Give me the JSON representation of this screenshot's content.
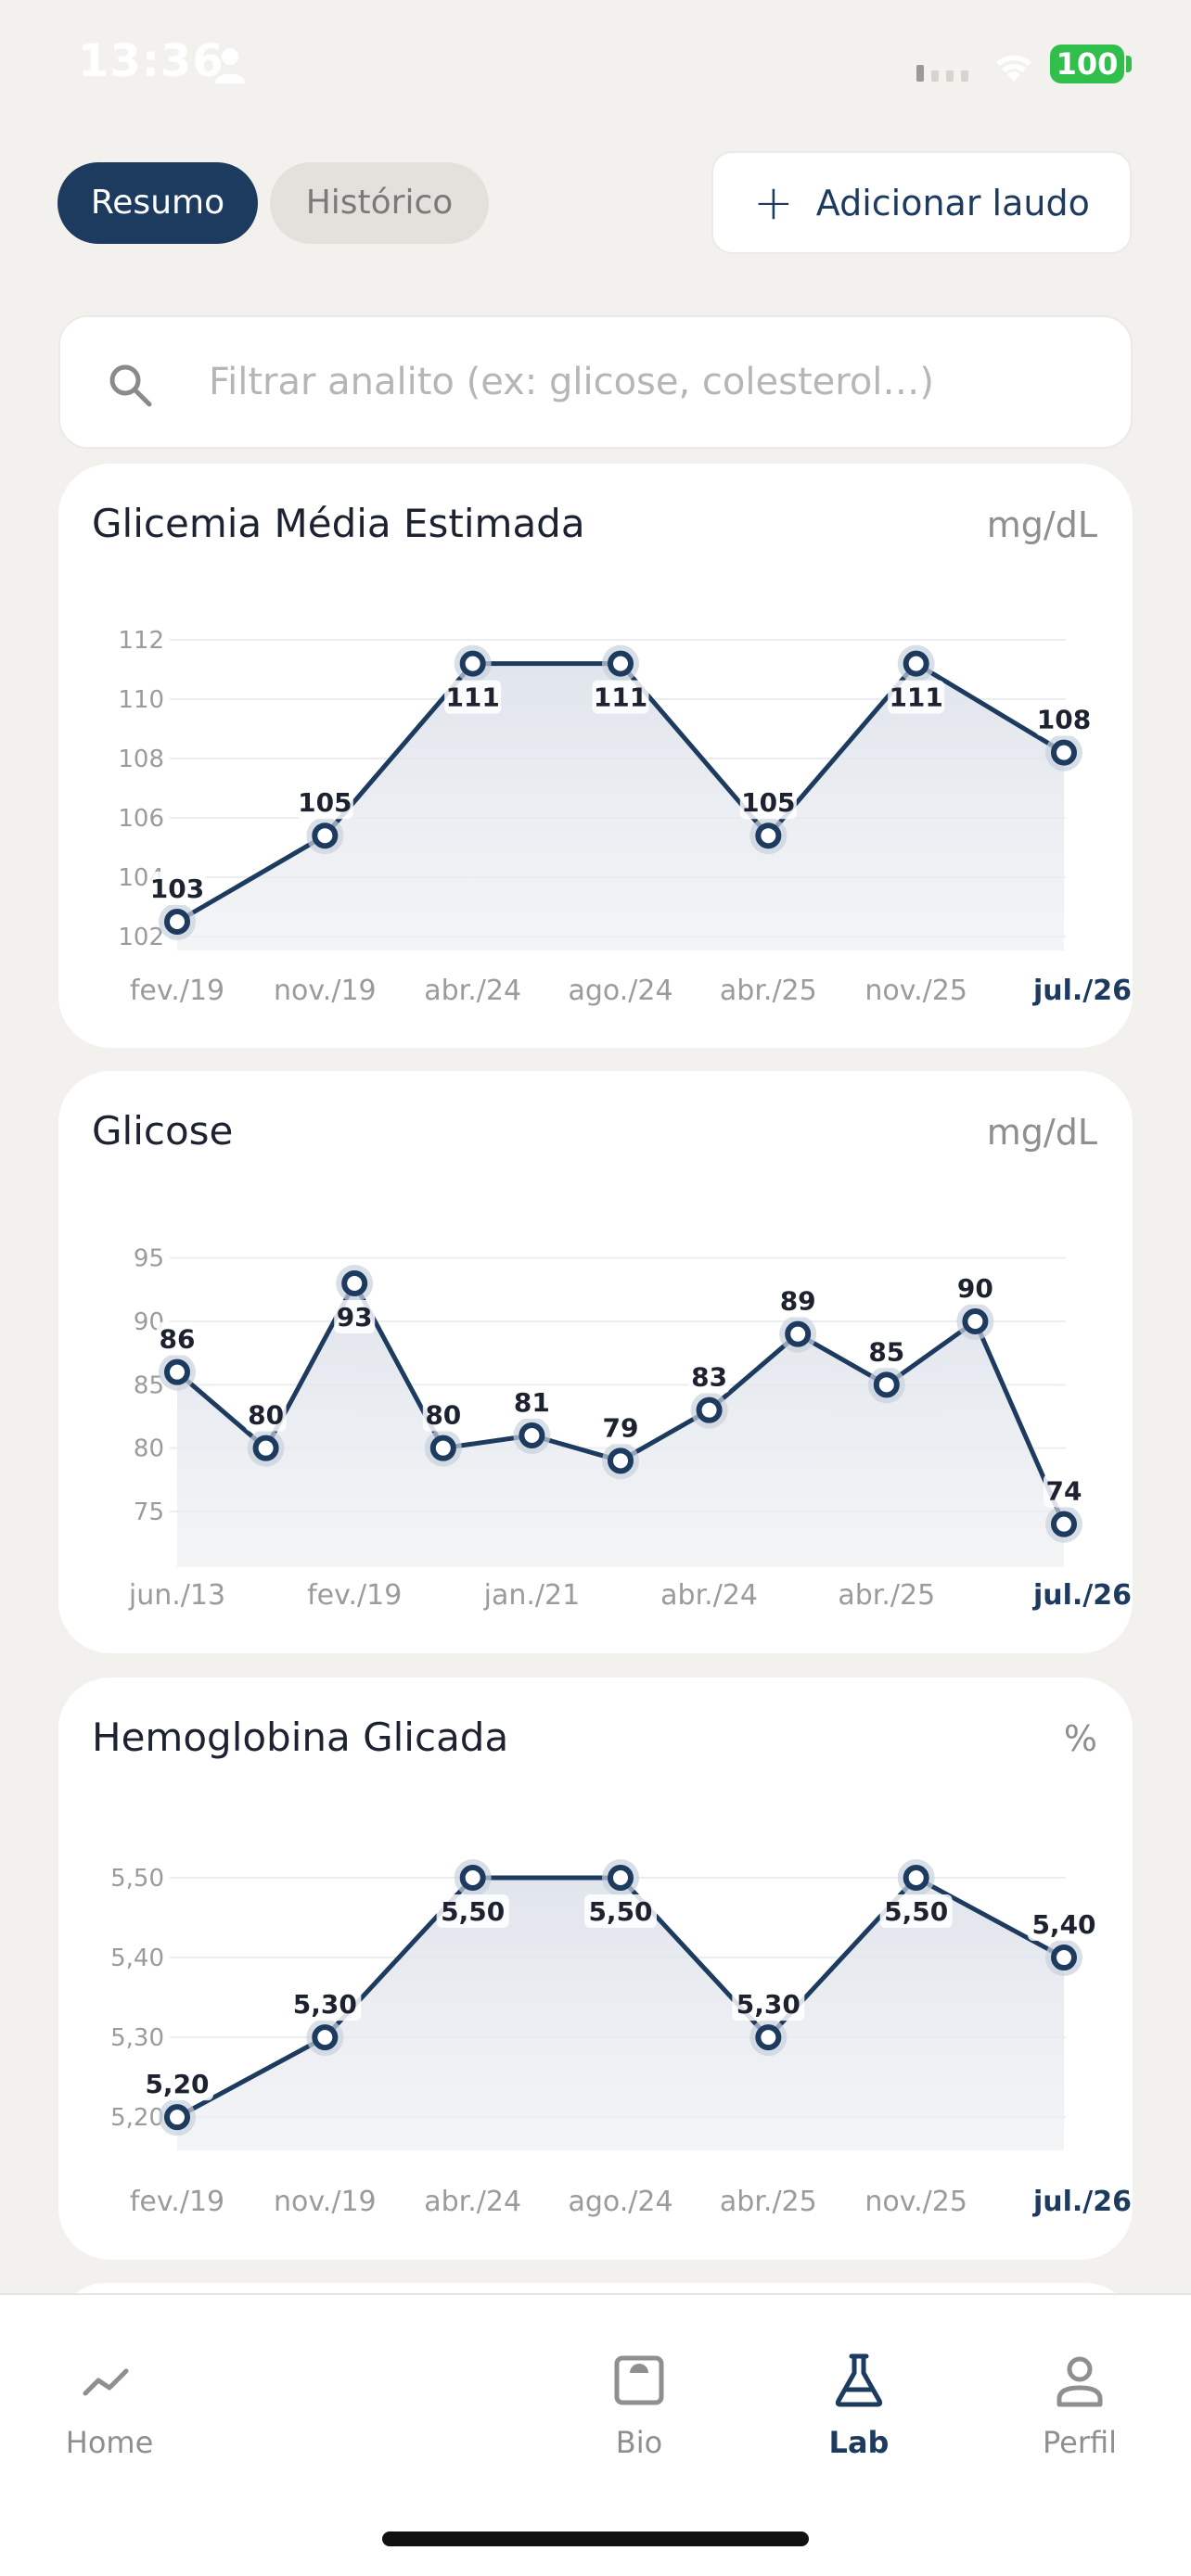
{
  "status_bar": {
    "time": "13:36",
    "battery": "100"
  },
  "tabs": {
    "active": "Resumo",
    "inactive": "Histórico"
  },
  "add_button": {
    "label": "Adicionar laudo"
  },
  "search": {
    "placeholder": "Filtrar analito (ex: glicose, colesterol…)"
  },
  "cards": [
    {
      "title": "Glicemia Média Estimada",
      "unit": "mg/dL"
    },
    {
      "title": "Glicose",
      "unit": "mg/dL"
    },
    {
      "title": "Hemoglobina Glicada",
      "unit": "%"
    }
  ],
  "chart_data": [
    {
      "type": "line",
      "title": "Glicemia Média Estimada",
      "ylabel": "mg/dL",
      "ylim": [
        102,
        112
      ],
      "yticks": [
        "102",
        "104",
        "106",
        "108",
        "110",
        "112"
      ],
      "xticks": [
        "fev./19",
        "nov./19",
        "abr./24",
        "ago./24",
        "abr./25",
        "nov./25",
        "jul./26"
      ],
      "x": [
        "fev./19",
        "nov./19",
        "abr./24",
        "ago./24",
        "abr./25",
        "nov./25",
        "jul./26"
      ],
      "values": [
        102.5,
        105.4,
        111.2,
        111.2,
        105.4,
        111.2,
        108.2
      ],
      "labels": [
        "103",
        "105",
        "111",
        "111",
        "105",
        "111",
        "108"
      ],
      "label_pos": [
        "above",
        "above",
        "below",
        "below",
        "above",
        "below",
        "above"
      ],
      "grid": true
    },
    {
      "type": "line",
      "title": "Glicose",
      "ylabel": "mg/dL",
      "ylim": [
        72,
        96
      ],
      "yticks": [
        "75",
        "80",
        "85",
        "90",
        "95"
      ],
      "xticks": [
        "jun./13",
        "fev./19",
        "jan./21",
        "abr./24",
        "abr./25",
        "jul./26"
      ],
      "x": [
        "jun./13",
        "",
        "fev./19",
        "",
        "jan./21",
        "",
        "abr./24",
        "",
        "abr./25",
        "",
        "jul./26"
      ],
      "values": [
        86,
        80,
        93,
        80,
        81,
        79,
        83,
        89,
        85,
        90,
        74
      ],
      "labels": [
        "86",
        "80",
        "93",
        "80",
        "81",
        "79",
        "83",
        "89",
        "85",
        "90",
        "74"
      ],
      "label_pos": [
        "above",
        "above",
        "below",
        "above",
        "above",
        "above",
        "above",
        "above",
        "above",
        "above",
        "above"
      ],
      "grid": true
    },
    {
      "type": "line",
      "title": "Hemoglobina Glicada",
      "ylabel": "%",
      "ylim": [
        5.17,
        5.5
      ],
      "yticks": [
        "5,20",
        "5,30",
        "5,40",
        "5,50"
      ],
      "xticks": [
        "fev./19",
        "nov./19",
        "abr./24",
        "ago./24",
        "abr./25",
        "nov./25",
        "jul./26"
      ],
      "x": [
        "fev./19",
        "nov./19",
        "abr./24",
        "ago./24",
        "abr./25",
        "nov./25",
        "jul./26"
      ],
      "values": [
        5.2,
        5.3,
        5.5,
        5.5,
        5.3,
        5.5,
        5.4
      ],
      "labels": [
        "5,20",
        "5,30",
        "5,50",
        "5,50",
        "5,30",
        "5,50",
        "5,40"
      ],
      "label_pos": [
        "above",
        "above",
        "below",
        "below",
        "above",
        "below",
        "above"
      ],
      "grid": true
    }
  ],
  "tabbar": [
    {
      "label": "Home",
      "icon": "trend-icon"
    },
    {
      "label": "Bio",
      "icon": "scale-icon"
    },
    {
      "label": "Lab",
      "icon": "flask-icon"
    },
    {
      "label": "Perfil",
      "icon": "person-icon"
    }
  ],
  "colors": {
    "accent": "#1d3a5f",
    "background": "#f3f1ee",
    "area": "#e6e9ee"
  }
}
